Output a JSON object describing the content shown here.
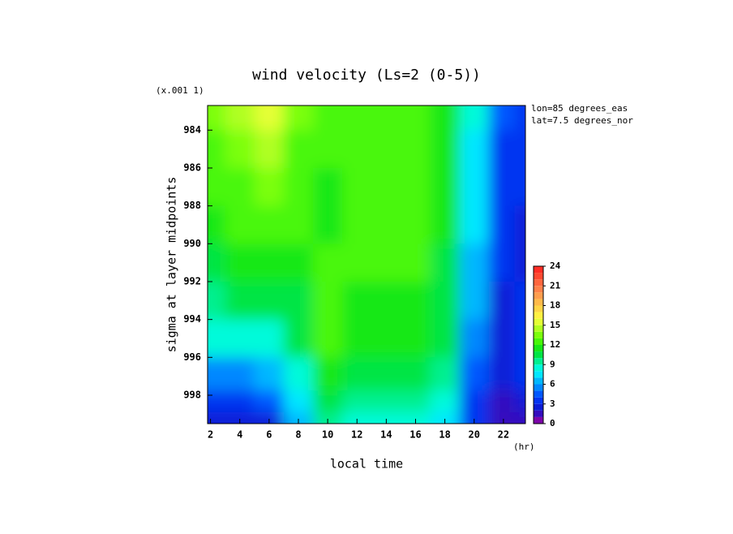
{
  "chart_data": {
    "type": "contour",
    "title": "wind velocity (Ls=2 (0-5))",
    "y_multiplier": "(x.001 1)",
    "xlabel": "local time",
    "x_unit": "(hr)",
    "ylabel": "sigma at layer midpoints",
    "annotations": [
      "lon=85 degrees_eas",
      "lat=7.5 degrees_nor"
    ],
    "x": [
      2,
      4,
      6,
      8,
      10,
      12,
      14,
      16,
      18,
      20,
      22,
      23.5
    ],
    "y": [
      983,
      985,
      987,
      989,
      991,
      993,
      995,
      997,
      998.5,
      999.3
    ],
    "z": [
      [
        13,
        14,
        15,
        13,
        12.5,
        12.5,
        12,
        12,
        11,
        8,
        4,
        3
      ],
      [
        12.5,
        13,
        14,
        12.5,
        12,
        12,
        12,
        12,
        11,
        7.5,
        3.5,
        3
      ],
      [
        12,
        12.5,
        13,
        12,
        11.5,
        12,
        12,
        12,
        11,
        7,
        3,
        3
      ],
      [
        11.5,
        12,
        12.5,
        12,
        11.5,
        12,
        12,
        12,
        11,
        7,
        3,
        2.5
      ],
      [
        10.5,
        11,
        11.5,
        11.5,
        12,
        12,
        12,
        12,
        10.5,
        6.5,
        3,
        2.5
      ],
      [
        9.5,
        10,
        10,
        10.5,
        12,
        11.5,
        11.5,
        11.5,
        10.5,
        6,
        2.5,
        3
      ],
      [
        8,
        8,
        8.5,
        10,
        12,
        11,
        11,
        11,
        10,
        5.5,
        2.5,
        3
      ],
      [
        5,
        5.5,
        6,
        8.5,
        11,
        10,
        10,
        10,
        9,
        4.5,
        2,
        3
      ],
      [
        3.5,
        3.5,
        4,
        7,
        10,
        9.5,
        9.5,
        9.5,
        8,
        3.5,
        1.5,
        2
      ],
      [
        2,
        2,
        2.5,
        6,
        9,
        8.5,
        8.5,
        8.5,
        7,
        3,
        1,
        1.5
      ]
    ],
    "xlim": [
      1.8,
      23.5
    ],
    "xticks": [
      2,
      4,
      6,
      8,
      10,
      12,
      14,
      16,
      18,
      20,
      22
    ],
    "ylim": [
      982.7,
      999.5
    ],
    "yticks": [
      984,
      986,
      988,
      990,
      992,
      994,
      996,
      998
    ],
    "clim": [
      0,
      24
    ],
    "cticks": [
      0,
      3,
      6,
      9,
      12,
      15,
      18,
      21,
      24
    ],
    "colormap": [
      {
        "value": 0,
        "color": "#a000a0"
      },
      {
        "value": 2,
        "color": "#1010c8"
      },
      {
        "value": 4,
        "color": "#0040ff"
      },
      {
        "value": 8,
        "color": "#00ffff"
      },
      {
        "value": 11,
        "color": "#00e020"
      },
      {
        "value": 13,
        "color": "#60ff00"
      },
      {
        "value": 16,
        "color": "#ffff40"
      },
      {
        "value": 20,
        "color": "#ff9050"
      },
      {
        "value": 24,
        "color": "#ff2020"
      }
    ]
  }
}
